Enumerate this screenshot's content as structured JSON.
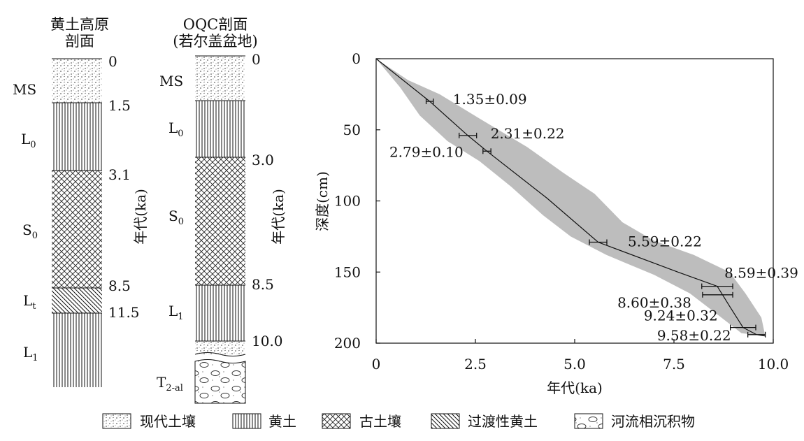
{
  "columns": [
    {
      "title_lines": [
        "黄土高原",
        "剖面"
      ],
      "age_axis_label": "年代(ka)",
      "units": [
        {
          "label": "MS",
          "sub": "",
          "pattern": "modern_soil",
          "top_age": "0",
          "bottom_age": "1.5"
        },
        {
          "label": "L",
          "sub": "0",
          "pattern": "loess",
          "top_age": "1.5",
          "bottom_age": "3.1"
        },
        {
          "label": "S",
          "sub": "0",
          "pattern": "paleosol",
          "top_age": "3.1",
          "bottom_age": "8.5"
        },
        {
          "label": "L",
          "sub": "t",
          "pattern": "transitional",
          "top_age": "8.5",
          "bottom_age": "11.5"
        },
        {
          "label": "L",
          "sub": "1",
          "pattern": "loess",
          "top_age": "11.5",
          "bottom_age": ""
        }
      ],
      "age_labels": [
        "0",
        "1.5",
        "3.1",
        "8.5",
        "11.5"
      ]
    },
    {
      "title_lines": [
        "OQC剖面",
        "(若尔盖盆地)"
      ],
      "age_axis_label": "年代(ka)",
      "units": [
        {
          "label": "MS",
          "sub": "",
          "pattern": "modern_soil"
        },
        {
          "label": "L",
          "sub": "0",
          "pattern": "loess"
        },
        {
          "label": "S",
          "sub": "0",
          "pattern": "paleosol"
        },
        {
          "label": "L",
          "sub": "1",
          "pattern": "loess"
        },
        {
          "label": "",
          "sub": "",
          "pattern": "modern_soil"
        },
        {
          "label": "T",
          "sub": "2-al",
          "pattern": "fluvial"
        }
      ],
      "age_labels": [
        "0",
        "3.0",
        "8.5",
        "10.0"
      ]
    }
  ],
  "legend": [
    {
      "pattern": "modern_soil",
      "label": "现代土壤"
    },
    {
      "pattern": "loess",
      "label": "黄土"
    },
    {
      "pattern": "paleosol",
      "label": "古土壤"
    },
    {
      "pattern": "transitional",
      "label": "过渡性黄土"
    },
    {
      "pattern": "fluvial",
      "label": "河流相沉积物"
    }
  ],
  "chart_data": {
    "type": "line",
    "xlabel": "年代(ka)",
    "ylabel": "深度(cm)",
    "xlim": [
      0,
      10
    ],
    "ylim": [
      0,
      200
    ],
    "y_inverted": true,
    "xticks": [
      "0",
      "2.5",
      "5.0",
      "7.5",
      "10.0"
    ],
    "yticks": [
      "0",
      "50",
      "100",
      "150",
      "200"
    ],
    "model_line": [
      {
        "x": 0,
        "y": 0
      },
      {
        "x": 1.35,
        "y": 30
      },
      {
        "x": 2.31,
        "y": 54
      },
      {
        "x": 2.79,
        "y": 65
      },
      {
        "x": 4.3,
        "y": 98
      },
      {
        "x": 5.59,
        "y": 129
      },
      {
        "x": 7.6,
        "y": 150
      },
      {
        "x": 8.59,
        "y": 160
      },
      {
        "x": 8.9,
        "y": 174
      },
      {
        "x": 9.24,
        "y": 189
      },
      {
        "x": 9.58,
        "y": 194
      },
      {
        "x": 9.8,
        "y": 195
      }
    ],
    "uncertainty_band": {
      "upper": [
        {
          "x": 0,
          "y": 0
        },
        {
          "x": 0.8,
          "y": 15
        },
        {
          "x": 1.6,
          "y": 25
        },
        {
          "x": 2.6,
          "y": 42
        },
        {
          "x": 3.8,
          "y": 62
        },
        {
          "x": 4.7,
          "y": 80
        },
        {
          "x": 5.5,
          "y": 95
        },
        {
          "x": 6.2,
          "y": 115
        },
        {
          "x": 7.0,
          "y": 128
        },
        {
          "x": 8.0,
          "y": 138
        },
        {
          "x": 8.9,
          "y": 150
        },
        {
          "x": 9.3,
          "y": 165
        },
        {
          "x": 9.7,
          "y": 182
        },
        {
          "x": 9.8,
          "y": 195
        }
      ],
      "lower": [
        {
          "x": 0,
          "y": 0
        },
        {
          "x": 0.6,
          "y": 20
        },
        {
          "x": 1.1,
          "y": 40
        },
        {
          "x": 1.8,
          "y": 58
        },
        {
          "x": 2.6,
          "y": 72
        },
        {
          "x": 3.4,
          "y": 90
        },
        {
          "x": 4.2,
          "y": 110
        },
        {
          "x": 4.9,
          "y": 125
        },
        {
          "x": 5.8,
          "y": 138
        },
        {
          "x": 7.0,
          "y": 152
        },
        {
          "x": 7.9,
          "y": 165
        },
        {
          "x": 8.6,
          "y": 180
        },
        {
          "x": 9.2,
          "y": 193
        },
        {
          "x": 9.8,
          "y": 195
        }
      ]
    },
    "dates": [
      {
        "age": 1.35,
        "err": 0.09,
        "depth": 30,
        "label": "1.35±0.09"
      },
      {
        "age": 2.31,
        "err": 0.22,
        "depth": 54,
        "label": "2.31±0.22"
      },
      {
        "age": 2.79,
        "err": 0.1,
        "depth": 65,
        "label": "2.79±0.10"
      },
      {
        "age": 5.59,
        "err": 0.22,
        "depth": 129,
        "label": "5.59±0.22"
      },
      {
        "age": 8.59,
        "err": 0.39,
        "depth": 160,
        "label": "8.59±0.39"
      },
      {
        "age": 8.6,
        "err": 0.38,
        "depth": 166,
        "label": "8.60±0.38"
      },
      {
        "age": 9.24,
        "err": 0.32,
        "depth": 189,
        "label": "9.24±0.32"
      },
      {
        "age": 9.58,
        "err": 0.22,
        "depth": 194,
        "label": "9.58±0.22"
      }
    ]
  }
}
